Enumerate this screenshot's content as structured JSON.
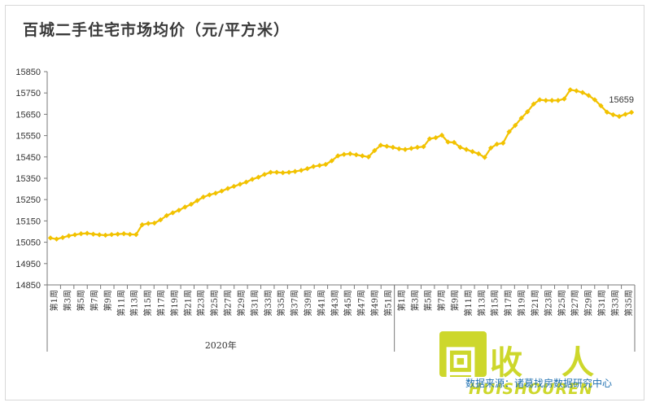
{
  "title": "百城二手住宅市场均价（元/平方米）",
  "source_note": "数据来源：诸葛找房数据研究中心",
  "watermark": {
    "logo_char_1": "回",
    "logo_char_2": "收",
    "logo_char_3": "人",
    "brand": "HUISHOUREN"
  },
  "colors": {
    "line": "#f2c200",
    "axis": "#7a7a7a",
    "text": "#333333",
    "brand": "#c9d41a"
  },
  "chart_data": {
    "type": "line",
    "title": "百城二手住宅市场均价（元/平方米）",
    "ylim": [
      14850,
      15850
    ],
    "y_ticks": [
      14850,
      14950,
      15050,
      15150,
      15250,
      15350,
      15450,
      15550,
      15650,
      15750,
      15850
    ],
    "grid": false,
    "legend": "none",
    "x_group_labels": [
      "2020年"
    ],
    "x_tick_labels": [
      "第1周",
      "第3周",
      "第5周",
      "第7周",
      "第9周",
      "第11周",
      "第13周",
      "第15周",
      "第17周",
      "第19周",
      "第21周",
      "第23周",
      "第25周",
      "第27周",
      "第29周",
      "第31周",
      "第33周",
      "第35周",
      "第37周",
      "第39周",
      "第41周",
      "第43周",
      "第45周",
      "第47周",
      "第49周",
      "第51周",
      "第1周",
      "第3周",
      "第5周",
      "第7周",
      "第9周",
      "第11周",
      "第13周",
      "第15周",
      "第17周",
      "第19周",
      "第21周",
      "第23周",
      "第25周",
      "第27周",
      "第29周",
      "第31周",
      "第33周",
      "第35周"
    ],
    "end_label": "15659",
    "series": [
      {
        "values": [
          15070,
          15065,
          15072,
          15080,
          15085,
          15090,
          15092,
          15088,
          15085,
          15083,
          15086,
          15088,
          15090,
          15087,
          15086,
          15132,
          15138,
          15140,
          15155,
          15175,
          15188,
          15200,
          15215,
          15228,
          15245,
          15262,
          15272,
          15280,
          15290,
          15302,
          15312,
          15322,
          15332,
          15345,
          15355,
          15368,
          15378,
          15378,
          15376,
          15378,
          15382,
          15387,
          15395,
          15405,
          15410,
          15415,
          15432,
          15455,
          15462,
          15465,
          15460,
          15455,
          15450,
          15480,
          15505,
          15500,
          15495,
          15488,
          15485,
          15490,
          15495,
          15498,
          15535,
          15540,
          15552,
          15520,
          15518,
          15495,
          15485,
          15475,
          15465,
          15448,
          15492,
          15510,
          15515,
          15568,
          15598,
          15632,
          15662,
          15698,
          15718,
          15715,
          15715,
          15715,
          15722,
          15765,
          15760,
          15752,
          15738,
          15718,
          15690,
          15660,
          15648,
          15640,
          15650,
          15659
        ]
      }
    ]
  }
}
